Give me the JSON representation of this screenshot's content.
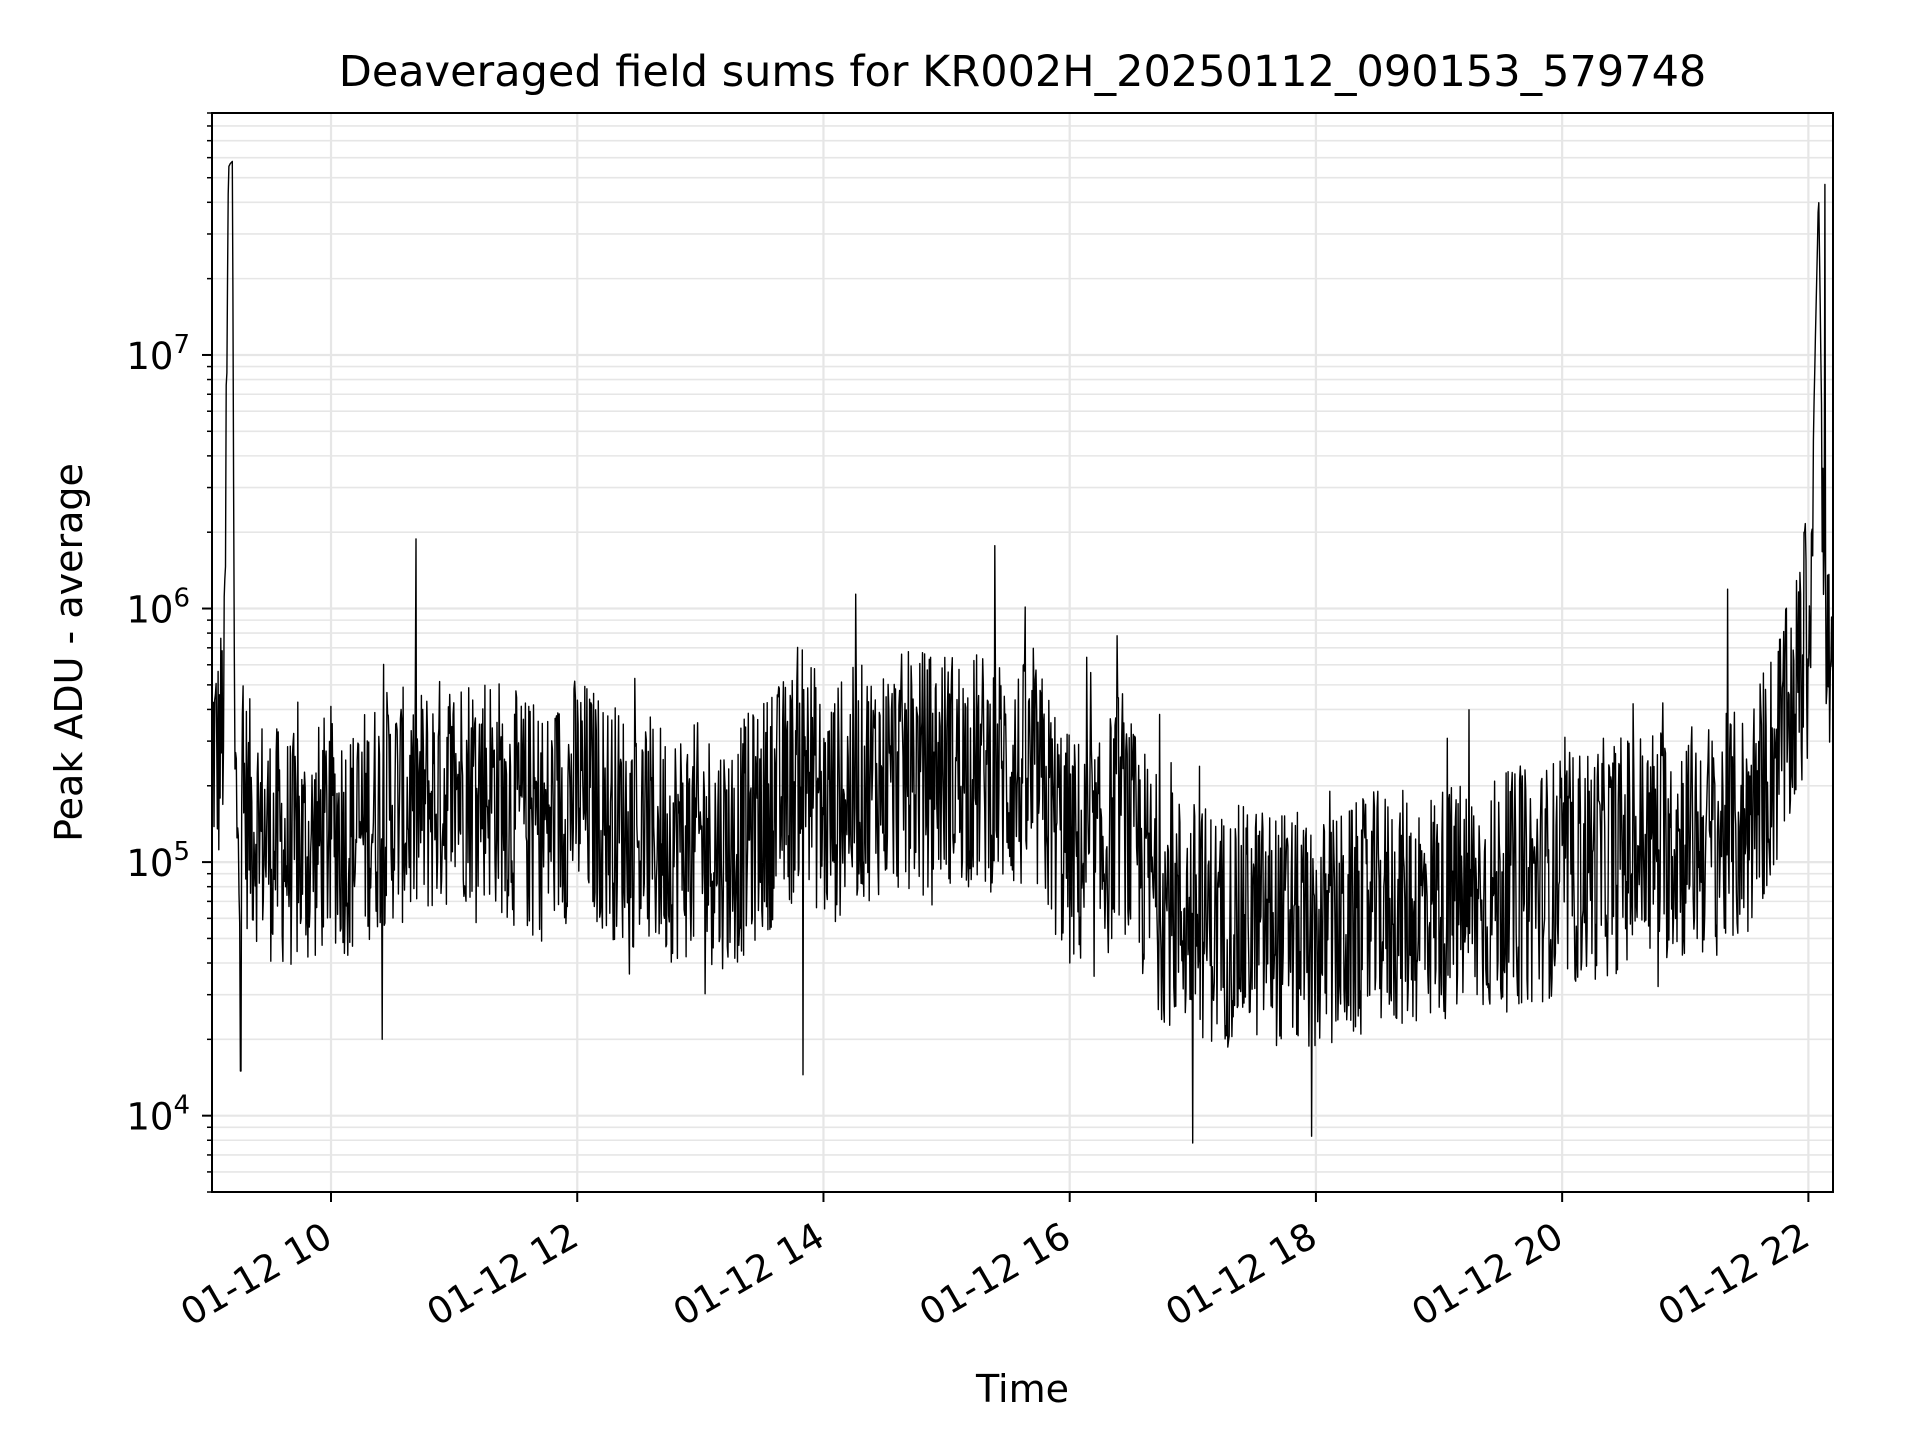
{
  "chart_data": {
    "type": "line",
    "title": "Deaveraged field sums for KR002H_20250112_090153_579748",
    "xlabel": "Time",
    "ylabel": "Peak ADU - average",
    "yscale": "log",
    "ylim": [
      5000,
      90000000
    ],
    "xlim": [
      "2025-01-12 09:02",
      "2025-01-12 22:12"
    ],
    "grid": true,
    "line_color": "#000000",
    "grid_color": "#e6e6e6",
    "x_ticks": [
      {
        "value": "2025-01-12 10:00",
        "label": "01-12 10"
      },
      {
        "value": "2025-01-12 12:00",
        "label": "01-12 12"
      },
      {
        "value": "2025-01-12 14:00",
        "label": "01-12 14"
      },
      {
        "value": "2025-01-12 16:00",
        "label": "01-12 16"
      },
      {
        "value": "2025-01-12 18:00",
        "label": "01-12 18"
      },
      {
        "value": "2025-01-12 20:00",
        "label": "01-12 20"
      },
      {
        "value": "2025-01-12 22:00",
        "label": "01-12 22"
      }
    ],
    "y_ticks": [
      {
        "value": 10000,
        "base": "10",
        "exp": "4"
      },
      {
        "value": 100000,
        "base": "10",
        "exp": "5"
      },
      {
        "value": 1000000,
        "base": "10",
        "exp": "6"
      },
      {
        "value": 10000000,
        "base": "10",
        "exp": "7"
      }
    ],
    "series": [
      {
        "x": [
          "2025-01-12 09:02",
          "2025-01-12 09:05",
          "2025-01-12 09:08",
          "2025-01-12 09:10",
          "2025-01-12 09:11",
          "2025-01-12 09:12",
          "2025-01-12 09:13",
          "2025-01-12 09:14",
          "2025-01-12 09:17",
          "2025-01-12 09:20",
          "2025-01-12 09:25",
          "2025-01-12 09:30",
          "2025-01-12 09:40",
          "2025-01-12 09:50",
          "2025-01-12 10:00",
          "2025-01-12 10:10",
          "2025-01-12 10:20",
          "2025-01-12 10:30",
          "2025-01-12 10:40",
          "2025-01-12 10:50",
          "2025-01-12 11:00",
          "2025-01-12 11:15",
          "2025-01-12 11:30",
          "2025-01-12 11:45",
          "2025-01-12 12:00",
          "2025-01-12 12:15",
          "2025-01-12 12:30",
          "2025-01-12 12:45",
          "2025-01-12 13:00",
          "2025-01-12 13:15",
          "2025-01-12 13:30",
          "2025-01-12 13:45",
          "2025-01-12 13:50",
          "2025-01-12 14:00",
          "2025-01-12 14:15",
          "2025-01-12 14:30",
          "2025-01-12 14:45",
          "2025-01-12 15:00",
          "2025-01-12 15:15",
          "2025-01-12 15:30",
          "2025-01-12 15:45",
          "2025-01-12 16:00",
          "2025-01-12 16:15",
          "2025-01-12 16:25",
          "2025-01-12 16:30",
          "2025-01-12 16:45",
          "2025-01-12 17:00",
          "2025-01-12 17:15",
          "2025-01-12 17:30",
          "2025-01-12 17:45",
          "2025-01-12 18:00",
          "2025-01-12 18:15",
          "2025-01-12 18:30",
          "2025-01-12 18:45",
          "2025-01-12 19:00",
          "2025-01-12 19:15",
          "2025-01-12 19:30",
          "2025-01-12 19:45",
          "2025-01-12 20:00",
          "2025-01-12 20:15",
          "2025-01-12 20:30",
          "2025-01-12 20:45",
          "2025-01-12 21:00",
          "2025-01-12 21:15",
          "2025-01-12 21:30",
          "2025-01-12 21:40",
          "2025-01-12 21:50",
          "2025-01-12 21:55",
          "2025-01-12 22:00",
          "2025-01-12 22:05",
          "2025-01-12 22:08",
          "2025-01-12 22:12"
        ],
        "y": [
          300000,
          250000,
          400000,
          55000000,
          57000000,
          58000000,
          200000,
          160000,
          180000,
          150000,
          140000,
          120000,
          110000,
          110000,
          140000,
          120000,
          150000,
          170000,
          160000,
          180000,
          200000,
          210000,
          160000,
          140000,
          190000,
          150000,
          130000,
          120000,
          120000,
          110000,
          150000,
          200000,
          300000,
          150000,
          200000,
          220000,
          230000,
          240000,
          230000,
          220000,
          200000,
          110000,
          100000,
          180000,
          120000,
          70000,
          60000,
          55000,
          58000,
          55000,
          50000,
          55000,
          65000,
          65000,
          70000,
          70000,
          75000,
          80000,
          90000,
          100000,
          110000,
          120000,
          120000,
          125000,
          140000,
          220000,
          350000,
          500000,
          600000,
          45000000,
          700000,
          550000
        ]
      }
    ],
    "notable_points": [
      {
        "x": "2025-01-12 09:12",
        "y": 58000000
      },
      {
        "x": "2025-01-12 09:16",
        "y": 15000
      },
      {
        "x": "2025-01-12 10:25",
        "y": 20000
      },
      {
        "x": "2025-01-12 13:50",
        "y": 14500
      },
      {
        "x": "2025-01-12 17:00",
        "y": 7800
      },
      {
        "x": "2025-01-12 17:58",
        "y": 8300
      },
      {
        "x": "2025-01-12 21:58",
        "y": 2000000
      },
      {
        "x": "2025-01-12 22:08",
        "y": 47000000
      }
    ]
  }
}
